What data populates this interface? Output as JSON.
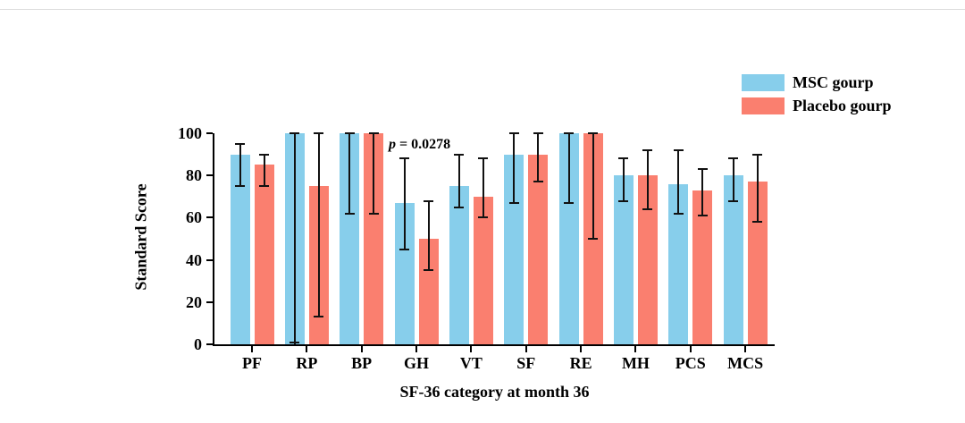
{
  "page": {
    "background": "#ffffff",
    "top_divider_color": "#dcdcdc"
  },
  "chart_data": {
    "type": "bar",
    "title": "",
    "xlabel": "SF-36 category at month 36",
    "ylabel": "Standard Score",
    "ylim": [
      0,
      100
    ],
    "yticks": [
      0,
      20,
      40,
      60,
      80,
      100
    ],
    "categories": [
      "PF",
      "RP",
      "BP",
      "GH",
      "VT",
      "SF",
      "RE",
      "MH",
      "PCS",
      "MCS"
    ],
    "series": [
      {
        "name": "MSC gourp",
        "color": "#87CEEB",
        "values": [
          90,
          100,
          100,
          67,
          75,
          90,
          100,
          80,
          76,
          80
        ],
        "err_low": [
          75,
          0,
          62,
          45,
          65,
          67,
          67,
          68,
          62,
          68
        ],
        "err_high": [
          95,
          100,
          100,
          88,
          90,
          100,
          100,
          88,
          92,
          88
        ]
      },
      {
        "name": "Placebo gourp",
        "color": "#FA7F6F",
        "values": [
          85,
          75,
          100,
          50,
          70,
          90,
          100,
          80,
          73,
          77
        ],
        "err_low": [
          75,
          13,
          62,
          35,
          60,
          77,
          50,
          64,
          61,
          58
        ],
        "err_high": [
          90,
          100,
          100,
          68,
          88,
          100,
          100,
          92,
          83,
          90
        ]
      }
    ],
    "annotation": {
      "symbol": "p",
      "value": " = 0.0278",
      "category": "GH"
    },
    "legend_position": "top-right",
    "grid": false,
    "error_bar_color": "#111111"
  }
}
